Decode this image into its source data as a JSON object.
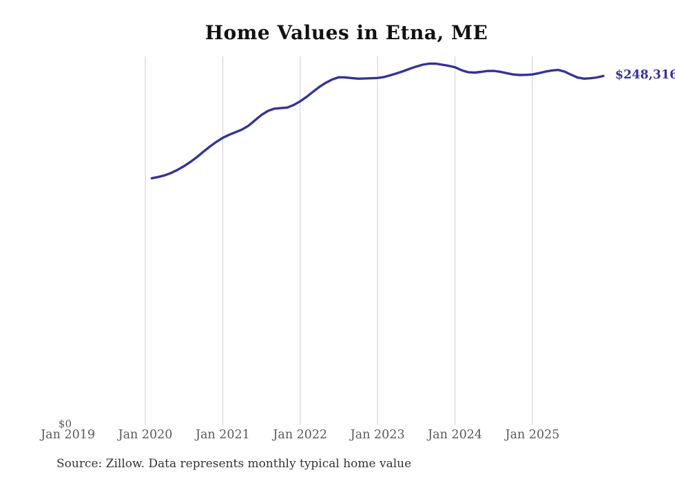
{
  "title": "Home Values in Etna, ME",
  "source_note": "Source: Zillow. Data represents monthly typical home value",
  "colors": {
    "line": "#32329c",
    "grid": "#cccccc",
    "title_text": "#111111",
    "axis_text": "#595959",
    "source_text": "#333333",
    "background": "#ffffff"
  },
  "y_axis": {
    "zero_label": "$0"
  },
  "chart_data": {
    "type": "line",
    "title": "Home Values in Etna, ME",
    "xlabel": "",
    "ylabel": "",
    "ylim": [
      0,
      262000
    ],
    "grid": "vertical-only",
    "legend": "none",
    "line_color": "#32329c",
    "end_label": "$248,316",
    "final_value": 248316,
    "x_tick_labels": [
      "Jan 2019",
      "Jan 2020",
      "Jan 2021",
      "Jan 2022",
      "Jan 2023",
      "Jan 2024",
      "Jan 2025"
    ],
    "x_tick_months_from_jan2020": [
      -12,
      0,
      12,
      24,
      36,
      48,
      60
    ],
    "gridline_months_from_jan2020": [
      0,
      12,
      24,
      36,
      48,
      60
    ],
    "y_tick_labels": [
      "$0"
    ],
    "dates": [
      "2020-02",
      "2020-03",
      "2020-04",
      "2020-05",
      "2020-06",
      "2020-07",
      "2020-08",
      "2020-09",
      "2020-10",
      "2020-11",
      "2020-12",
      "2021-01",
      "2021-02",
      "2021-03",
      "2021-04",
      "2021-05",
      "2021-06",
      "2021-07",
      "2021-08",
      "2021-09",
      "2021-10",
      "2021-11",
      "2021-12",
      "2022-01",
      "2022-02",
      "2022-03",
      "2022-04",
      "2022-05",
      "2022-06",
      "2022-07",
      "2022-08",
      "2022-09",
      "2022-10",
      "2022-11",
      "2022-12",
      "2023-01",
      "2023-02",
      "2023-03",
      "2023-04",
      "2023-05",
      "2023-06",
      "2023-07",
      "2023-08",
      "2023-09",
      "2023-10",
      "2023-11",
      "2023-12",
      "2024-01",
      "2024-02",
      "2024-03",
      "2024-04",
      "2024-05",
      "2024-06",
      "2024-07",
      "2024-08",
      "2024-09",
      "2024-10",
      "2024-11",
      "2024-12",
      "2025-01",
      "2025-02",
      "2025-03",
      "2025-04",
      "2025-05",
      "2025-06",
      "2025-07",
      "2025-08",
      "2025-09",
      "2025-10",
      "2025-11",
      "2025-12"
    ],
    "values": [
      176000,
      176900,
      178100,
      179800,
      182000,
      184600,
      187600,
      191000,
      194800,
      198400,
      201700,
      204600,
      206800,
      208600,
      210500,
      213200,
      217000,
      220800,
      223600,
      225200,
      225600,
      226000,
      227800,
      230400,
      233600,
      237200,
      240700,
      243600,
      245900,
      247400,
      247300,
      246800,
      246400,
      246500,
      246700,
      246900,
      247600,
      248800,
      250200,
      251700,
      253400,
      255000,
      256300,
      257000,
      257000,
      256300,
      255500,
      254500,
      252400,
      251000,
      250700,
      251200,
      251800,
      251900,
      251300,
      250300,
      249400,
      249000,
      249100,
      249400,
      250300,
      251400,
      252200,
      252600,
      251400,
      249200,
      247200,
      246400,
      246700,
      247300,
      248316
    ]
  }
}
